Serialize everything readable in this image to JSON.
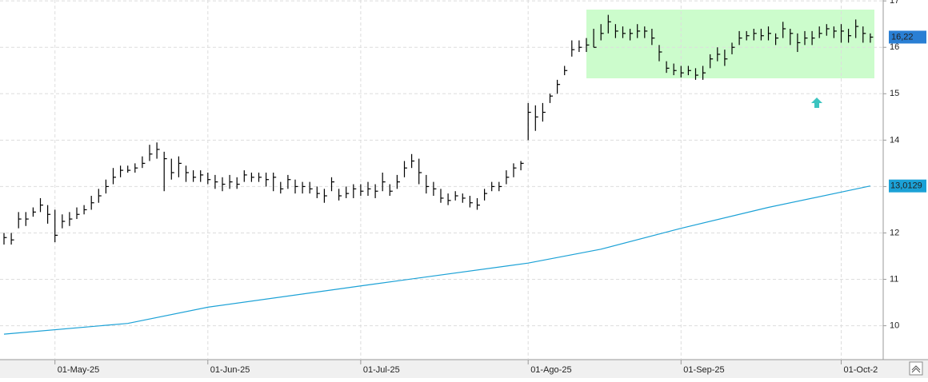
{
  "chart_data": {
    "type": "ohlc",
    "categories": [
      null,
      null,
      null,
      null,
      null,
      null,
      null,
      "01-May-25",
      null,
      null,
      null,
      null,
      null,
      null,
      null,
      null,
      null,
      null,
      null,
      null,
      null,
      null,
      null,
      null,
      null,
      null,
      null,
      null,
      "01-Jun-25",
      null,
      null,
      null,
      null,
      null,
      null,
      null,
      null,
      null,
      null,
      null,
      null,
      null,
      null,
      null,
      null,
      null,
      null,
      null,
      null,
      "01-Jul-25",
      null,
      null,
      null,
      null,
      null,
      null,
      null,
      null,
      null,
      null,
      null,
      null,
      null,
      null,
      null,
      null,
      null,
      null,
      null,
      null,
      null,
      null,
      "01-Ago-25",
      null,
      null,
      null,
      null,
      null,
      null,
      null,
      null,
      null,
      null,
      null,
      null,
      null,
      null,
      null,
      null,
      null,
      null,
      null,
      null,
      "01-Sep-25",
      null,
      null,
      null,
      null,
      null,
      null,
      null,
      null,
      null,
      null,
      null,
      null,
      null,
      null,
      null,
      null,
      null,
      null,
      null,
      null,
      null,
      "01-Oct-2",
      null,
      null,
      null,
      null
    ],
    "series": [
      {
        "color": "#000000",
        "high": [
          12.0,
          12.0,
          12.45,
          12.45,
          12.55,
          12.75,
          12.6,
          12.5,
          12.4,
          12.45,
          12.55,
          12.6,
          12.8,
          12.95,
          13.15,
          13.4,
          13.45,
          13.45,
          13.5,
          13.65,
          13.9,
          13.95,
          13.75,
          13.6,
          13.65,
          13.45,
          13.35,
          13.35,
          13.3,
          13.25,
          13.2,
          13.25,
          13.2,
          13.35,
          13.3,
          13.3,
          13.3,
          13.3,
          13.1,
          13.25,
          13.15,
          13.1,
          13.1,
          13.0,
          12.95,
          13.2,
          12.95,
          13.0,
          13.05,
          13.05,
          13.1,
          13.05,
          13.3,
          13.05,
          13.25,
          13.55,
          13.7,
          13.6,
          13.25,
          13.1,
          12.95,
          12.85,
          12.9,
          12.85,
          12.8,
          12.75,
          12.95,
          13.1,
          13.1,
          13.35,
          13.5,
          13.55,
          14.8,
          14.75,
          14.8,
          15.0,
          15.3,
          15.6,
          16.15,
          16.15,
          16.2,
          16.4,
          16.5,
          16.7,
          16.5,
          16.45,
          16.4,
          16.5,
          16.45,
          16.4,
          16.05,
          15.7,
          15.65,
          15.6,
          15.6,
          15.55,
          15.6,
          15.85,
          16.0,
          15.95,
          16.1,
          16.35,
          16.35,
          16.4,
          16.4,
          16.45,
          16.3,
          16.55,
          16.4,
          16.3,
          16.35,
          16.35,
          16.45,
          16.5,
          16.45,
          16.5,
          16.4,
          16.6,
          16.45,
          16.3
        ],
        "low": [
          11.75,
          11.75,
          12.1,
          12.15,
          12.35,
          12.45,
          12.2,
          11.8,
          12.1,
          12.15,
          12.3,
          12.4,
          12.5,
          12.65,
          12.85,
          13.05,
          13.2,
          13.3,
          13.3,
          13.4,
          13.55,
          13.6,
          12.9,
          13.15,
          13.2,
          13.1,
          13.1,
          13.1,
          13.05,
          12.95,
          12.9,
          12.95,
          12.95,
          13.1,
          13.1,
          13.1,
          13.0,
          12.9,
          12.85,
          12.95,
          12.85,
          12.85,
          12.85,
          12.75,
          12.65,
          12.9,
          12.7,
          12.75,
          12.75,
          12.8,
          12.8,
          12.75,
          12.9,
          12.8,
          12.95,
          13.2,
          13.4,
          13.05,
          12.85,
          12.8,
          12.65,
          12.6,
          12.7,
          12.65,
          12.55,
          12.5,
          12.7,
          12.9,
          12.9,
          13.05,
          13.2,
          13.35,
          14.0,
          14.2,
          14.4,
          14.8,
          15.0,
          15.4,
          15.8,
          15.9,
          15.9,
          16.0,
          16.15,
          16.3,
          16.2,
          16.2,
          16.15,
          16.2,
          16.2,
          16.05,
          15.7,
          15.45,
          15.4,
          15.35,
          15.4,
          15.3,
          15.3,
          15.55,
          15.7,
          15.6,
          15.85,
          16.05,
          16.15,
          16.15,
          16.15,
          16.15,
          16.05,
          16.2,
          16.05,
          15.9,
          16.05,
          16.05,
          16.2,
          16.25,
          16.2,
          16.1,
          16.1,
          16.2,
          16.1,
          16.1
        ],
        "close": [
          11.9,
          11.85,
          12.3,
          12.3,
          12.45,
          12.6,
          12.4,
          11.95,
          12.25,
          12.3,
          12.4,
          12.5,
          12.65,
          12.8,
          13.0,
          13.2,
          13.35,
          13.35,
          13.4,
          13.5,
          13.7,
          13.8,
          13.6,
          13.3,
          13.5,
          13.3,
          13.2,
          13.25,
          13.15,
          13.1,
          13.05,
          13.1,
          13.05,
          13.25,
          13.2,
          13.2,
          13.15,
          13.2,
          12.95,
          13.15,
          13.0,
          13.0,
          12.95,
          12.85,
          12.8,
          13.1,
          12.8,
          12.85,
          12.95,
          12.9,
          12.95,
          12.9,
          13.1,
          12.9,
          13.1,
          13.4,
          13.55,
          13.3,
          13.0,
          12.95,
          12.75,
          12.7,
          12.8,
          12.75,
          12.65,
          12.6,
          12.85,
          13.0,
          13.0,
          13.2,
          13.4,
          13.5,
          14.6,
          14.5,
          14.6,
          14.95,
          15.2,
          15.5,
          15.95,
          16.0,
          16.05,
          16.0,
          16.3,
          16.55,
          16.35,
          16.3,
          16.3,
          16.35,
          16.35,
          16.2,
          15.9,
          15.55,
          15.5,
          15.45,
          15.5,
          15.4,
          15.45,
          15.75,
          15.85,
          15.75,
          16.0,
          16.2,
          16.25,
          16.3,
          16.25,
          16.3,
          16.2,
          16.4,
          16.3,
          16.1,
          16.2,
          16.2,
          16.3,
          16.4,
          16.35,
          16.35,
          16.25,
          16.45,
          16.3,
          16.22
        ],
        "last_label": "16,22"
      },
      {
        "type": "line",
        "color": "#1ba1d6",
        "x": [
          0,
          17,
          28,
          50,
          72,
          82,
          93,
          105,
          119
        ],
        "values": [
          9.82,
          10.05,
          10.4,
          10.88,
          11.35,
          11.65,
          12.1,
          12.55,
          13.0129
        ],
        "last_label": "13,0129"
      }
    ],
    "ylim": [
      9.27,
      17.02
    ],
    "yticks": [
      10,
      11,
      12,
      13,
      14,
      15,
      16,
      17
    ],
    "grid": true
  }
}
